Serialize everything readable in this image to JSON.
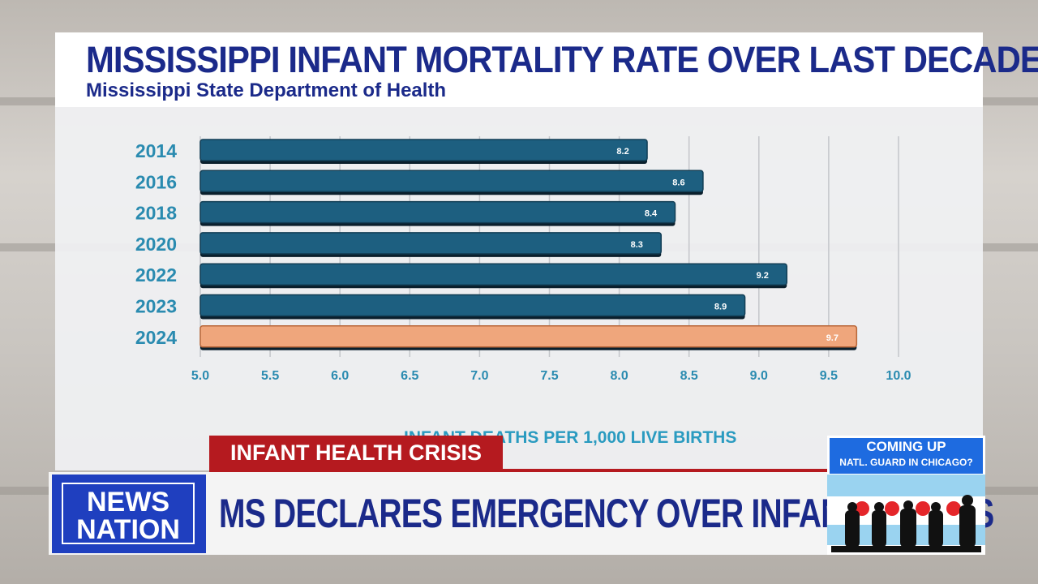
{
  "chart_data": {
    "type": "bar",
    "orientation": "horizontal",
    "title": "MISSISSIPPI INFANT MORTALITY RATE OVER LAST DECADE",
    "subtitle": "Mississippi State Department of Health",
    "xlabel": "INFANT DEATHS PER 1,000 LIVE BIRTHS",
    "categories": [
      "2014",
      "2016",
      "2018",
      "2020",
      "2022",
      "2023",
      "2024"
    ],
    "values": [
      8.2,
      8.6,
      8.4,
      8.3,
      9.2,
      8.9,
      9.7
    ],
    "data_labels": [
      "8.2",
      "8.6",
      "8.4",
      "8.3",
      "9.2",
      "8.9",
      "9.7"
    ],
    "xlim": [
      5.0,
      10.0
    ],
    "xticks": [
      "5.0",
      "5.5",
      "6.0",
      "6.5",
      "7.0",
      "7.5",
      "8.0",
      "8.5",
      "9.0",
      "9.5",
      "10.0"
    ],
    "grid": true,
    "colors": {
      "default": "#1d5f80",
      "highlight": "#efa67c"
    },
    "highlight_category": "2024"
  },
  "lower_third": {
    "tag": "INFANT HEALTH CRISIS",
    "headline": "MS DECLARES EMERGENCY OVER INFANT DEATHS",
    "logo_line1": "NEWS",
    "logo_line2": "NATION",
    "tag_color": "#b51a1f",
    "logo_color": "#1f3fbf"
  },
  "promo": {
    "line1": "COMING UP",
    "line2": "NATL. GUARD IN CHICAGO?"
  }
}
